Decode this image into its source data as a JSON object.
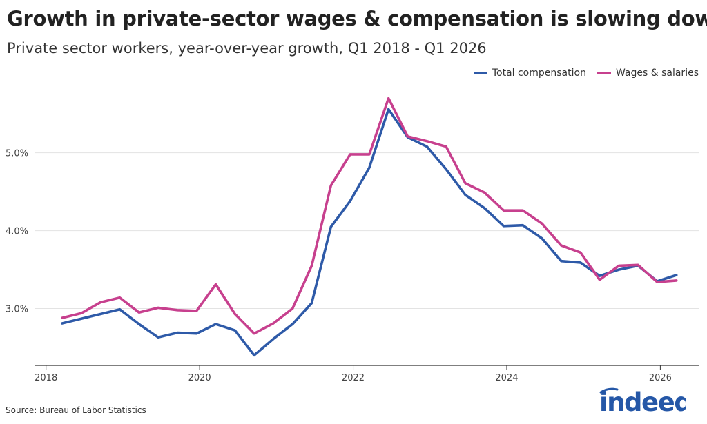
{
  "header": {
    "title": "Growth in private-sector wages & compensation is slowing down",
    "subtitle": "Private sector workers, year-over-year growth, Q1 2018 - Q1 2026"
  },
  "footer": {
    "source": "Source: Bureau of Labor Statistics",
    "brand": "indeed"
  },
  "colors": {
    "total_compensation": "#2e5aa8",
    "wages_salaries": "#c7408e",
    "grid": "#e3e3e3",
    "axis": "#333333",
    "logo": "#2557a7"
  },
  "chart_data": {
    "type": "line",
    "title": "Growth in private-sector wages & compensation is slowing down",
    "subtitle": "Private sector workers, year-over-year growth, Q1 2018 - Q1 2026",
    "xlabel": "",
    "ylabel": "",
    "xlim": [
      2017.85,
      2026.5
    ],
    "ylim": [
      2.27,
      5.9
    ],
    "y_ticks": [
      {
        "value": 3.0,
        "label": "3.0%"
      },
      {
        "value": 4.0,
        "label": "4.0%"
      },
      {
        "value": 5.0,
        "label": "5.0%"
      }
    ],
    "x_ticks": [
      {
        "value": 2018,
        "label": "2018"
      },
      {
        "value": 2020,
        "label": "2020"
      },
      {
        "value": 2022,
        "label": "2022"
      },
      {
        "value": 2024,
        "label": "2024"
      },
      {
        "value": 2026,
        "label": "2026"
      }
    ],
    "grid": true,
    "legend_position": "top-right",
    "x": [
      "2018 Q1",
      "2018 Q2",
      "2018 Q3",
      "2018 Q4",
      "2019 Q1",
      "2019 Q2",
      "2019 Q3",
      "2019 Q4",
      "2020 Q1",
      "2020 Q2",
      "2020 Q3",
      "2020 Q4",
      "2021 Q1",
      "2021 Q2",
      "2021 Q3",
      "2021 Q4",
      "2022 Q1",
      "2022 Q2",
      "2022 Q3",
      "2022 Q4",
      "2023 Q1",
      "2023 Q2",
      "2023 Q3",
      "2023 Q4",
      "2024 Q1",
      "2024 Q2",
      "2024 Q3",
      "2024 Q4",
      "2025 Q1",
      "2025 Q2",
      "2025 Q3",
      "2025 Q4",
      "2026 Q1"
    ],
    "x_numeric": [
      2018.21,
      2018.46,
      2018.71,
      2018.96,
      2019.21,
      2019.46,
      2019.71,
      2019.96,
      2020.21,
      2020.46,
      2020.71,
      2020.96,
      2021.21,
      2021.46,
      2021.71,
      2021.96,
      2022.21,
      2022.46,
      2022.71,
      2022.96,
      2023.21,
      2023.46,
      2023.71,
      2023.96,
      2024.21,
      2024.46,
      2024.71,
      2024.96,
      2025.21,
      2025.46,
      2025.71,
      2025.96,
      2026.21
    ],
    "series": [
      {
        "name": "Total compensation",
        "color": "#2e5aa8",
        "values": [
          2.81,
          2.87,
          2.93,
          2.99,
          2.8,
          2.63,
          2.69,
          2.68,
          2.8,
          2.72,
          2.4,
          2.61,
          2.8,
          3.07,
          4.05,
          4.38,
          4.81,
          5.56,
          5.2,
          5.08,
          4.79,
          4.46,
          4.29,
          4.06,
          4.07,
          3.9,
          3.61,
          3.59,
          3.42,
          3.5,
          3.55,
          3.35,
          3.43
        ]
      },
      {
        "name": "Wages & salaries",
        "color": "#c7408e",
        "values": [
          2.88,
          2.94,
          3.08,
          3.14,
          2.95,
          3.01,
          2.98,
          2.97,
          3.31,
          2.93,
          2.68,
          2.81,
          3.0,
          3.55,
          4.58,
          4.98,
          4.98,
          5.7,
          5.21,
          5.15,
          5.08,
          4.61,
          4.49,
          4.26,
          4.26,
          4.09,
          3.81,
          3.72,
          3.37,
          3.55,
          3.56,
          3.34,
          3.36
        ]
      }
    ]
  }
}
